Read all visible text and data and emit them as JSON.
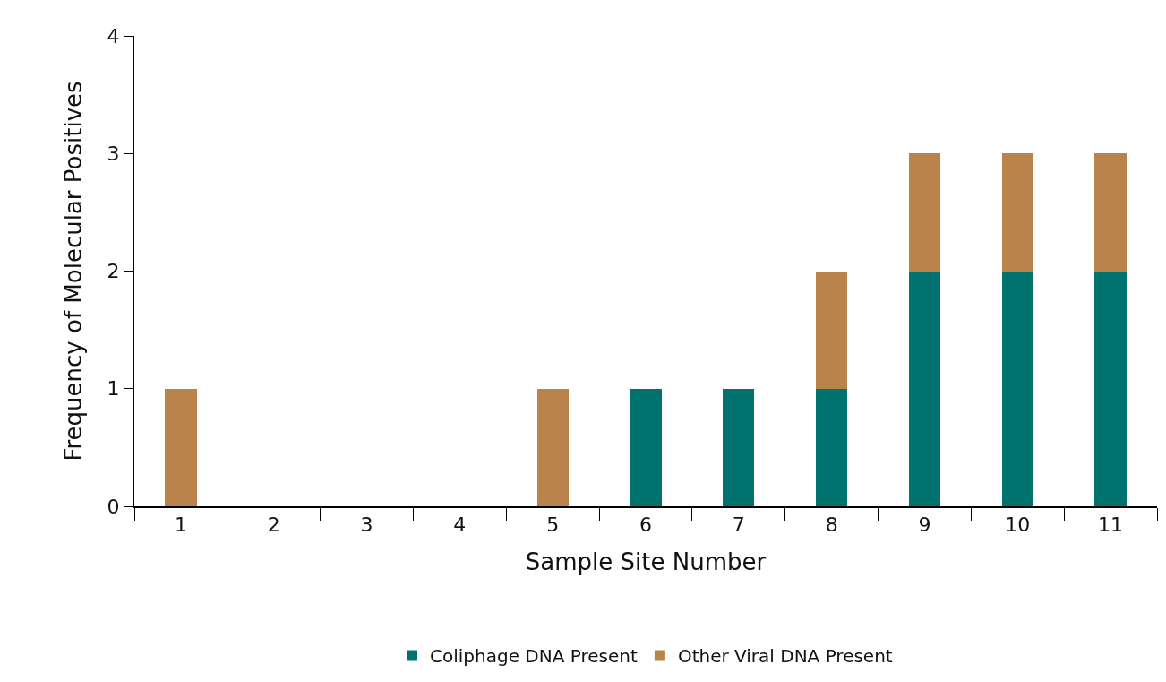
{
  "chart_data": {
    "type": "bar",
    "stacked": true,
    "xlabel": "Sample Site Number",
    "ylabel": "Frequency of Molecular Positives",
    "categories": [
      "1",
      "2",
      "3",
      "4",
      "5",
      "6",
      "7",
      "8",
      "9",
      "10",
      "11"
    ],
    "series": [
      {
        "name": "Coliphage DNA Present",
        "color": "#007370",
        "values": [
          0,
          0,
          0,
          0,
          0,
          1,
          1,
          1,
          2,
          2,
          2
        ]
      },
      {
        "name": "Other Viral DNA Present",
        "color": "#b9834b",
        "values": [
          1,
          0,
          0,
          0,
          1,
          0,
          0,
          1,
          1,
          1,
          1
        ]
      }
    ],
    "ylim": [
      0,
      4
    ],
    "yticks": [
      0,
      1,
      2,
      3,
      4
    ],
    "grid": false,
    "legend": "bottom"
  }
}
